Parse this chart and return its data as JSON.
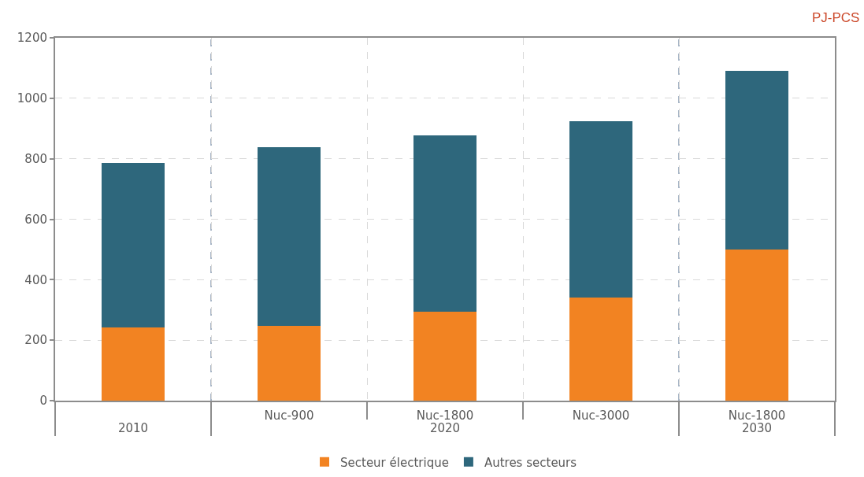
{
  "chart_data": {
    "type": "bar",
    "stacked": true,
    "ylabel": "PJ-PCS",
    "categories": [
      null,
      "Nuc-900",
      "Nuc-1800",
      "Nuc-3000",
      "Nuc-1800"
    ],
    "series": [
      {
        "name": "Secteur électrique",
        "color": "#f28322",
        "values": [
          243,
          247,
          295,
          342,
          501
        ]
      },
      {
        "name": "Autres secteurs",
        "color": "#2e677c",
        "values": [
          543,
          590,
          583,
          583,
          590
        ]
      }
    ],
    "ylim": [
      0,
      1200
    ],
    "yticks": [
      0,
      200,
      400,
      600,
      800,
      1000,
      1200
    ],
    "grid": true,
    "legend": "bottom",
    "annotations": [
      "2010",
      "2020",
      "2030"
    ]
  }
}
